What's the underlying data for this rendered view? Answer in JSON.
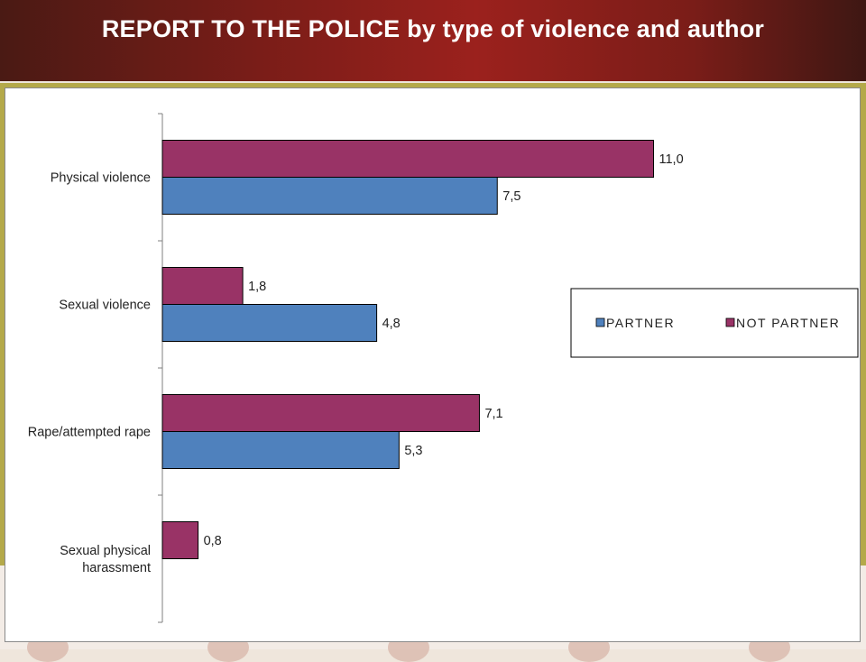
{
  "slide": {
    "title": "REPORT TO THE POLICE by type of violence and author"
  },
  "colors": {
    "partner": "#4f81bd",
    "not_partner": "#993366"
  },
  "chart_data": {
    "type": "bar",
    "orientation": "horizontal",
    "title": "",
    "xlabel": "",
    "ylabel": "",
    "categories": [
      [
        "Physical violence"
      ],
      [
        "Sexual violence"
      ],
      [
        "Rape/attempted rape"
      ],
      [
        "Sexual physical",
        "harassment"
      ]
    ],
    "series": [
      {
        "name": "NOT PARTNER",
        "values": [
          11.0,
          1.8,
          7.1,
          0.8
        ],
        "labels": [
          "11,0",
          "1,8",
          "7,1",
          "0,8"
        ],
        "color": "#993366"
      },
      {
        "name": "PARTNER",
        "values": [
          7.5,
          4.8,
          5.3,
          null
        ],
        "labels": [
          "7,5",
          "4,8",
          "5,3",
          ""
        ],
        "color": "#4f81bd"
      }
    ],
    "legend": {
      "position": "right",
      "order": [
        "PARTNER",
        "NOT PARTNER"
      ]
    },
    "grid": false
  }
}
